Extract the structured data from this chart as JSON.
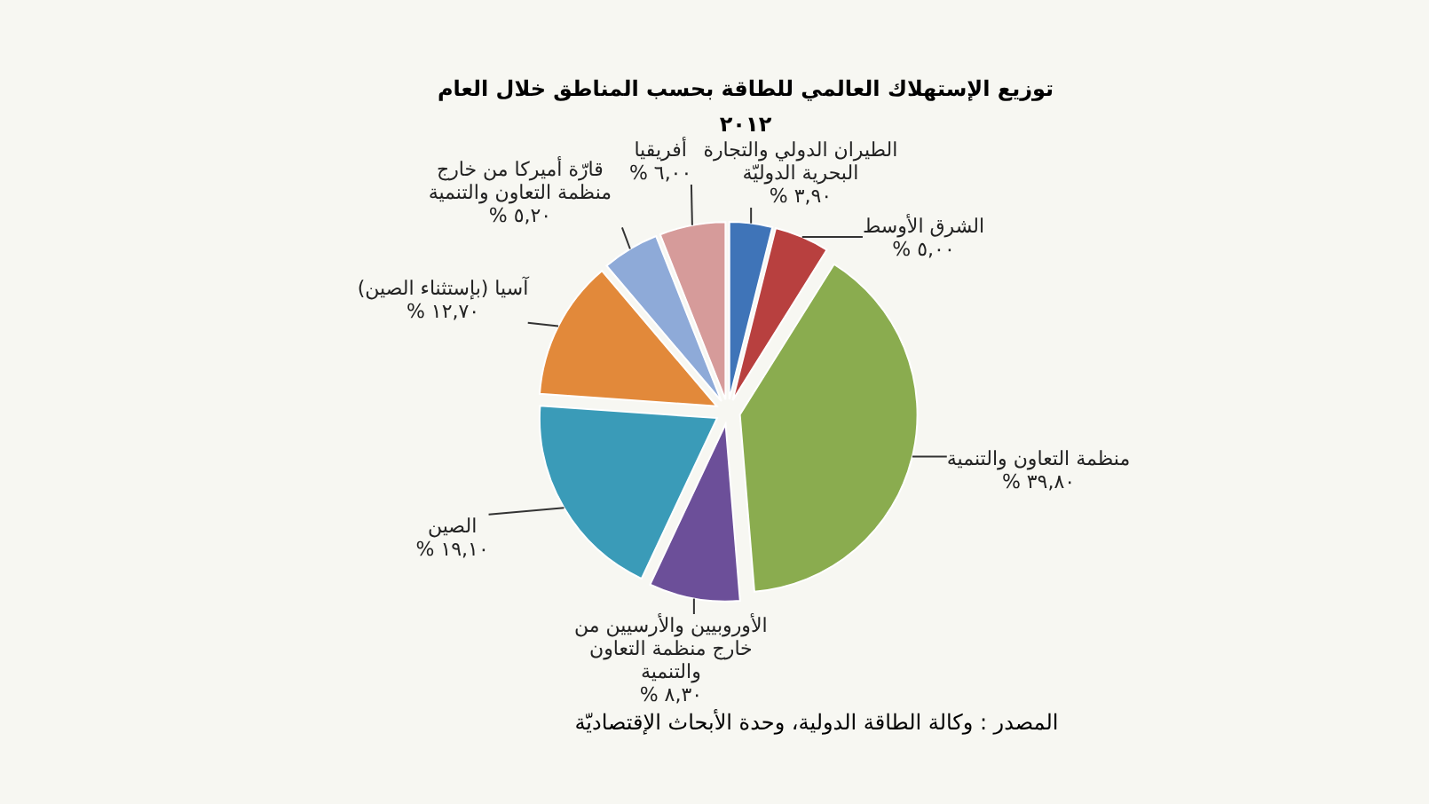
{
  "chart_data": {
    "type": "pie",
    "title": "توزيع الإستهلاك العالمي للطاقة بحسب المناطق خلال العام ٢٠١٢",
    "categories": [
      "الطيران الدولي والتجارة البحرية الدوليّة",
      "الشرق الأوسط",
      "منظمة التعاون والتنمية",
      "الأوروبيين والأرسيين من خارج منظمة التعاون والتنمية",
      "الصين",
      "آسيا (بإستثناء الصين)",
      "قارّة أميركا من خارج منظمة التعاون والتنمية",
      "أفريقيا"
    ],
    "values": [
      3.9,
      5.0,
      39.8,
      8.3,
      19.1,
      12.7,
      5.2,
      6.0
    ],
    "value_labels": [
      "٣,٩٠ %",
      "٥,٠٠ %",
      "٣٩,٨٠ %",
      "٨,٣٠ %",
      "١٩,١٠ %",
      "١٢,٧٠ %",
      "٥,٢٠ %",
      "٦,٠٠ %"
    ],
    "colors": [
      "#3f74b8",
      "#b8403f",
      "#8aac4f",
      "#6c4f99",
      "#3a9bb8",
      "#e2893a",
      "#8eaad8",
      "#d69b9a"
    ],
    "annotations": [
      "المصدر : وكالة الطاقة الدولية، وحدة الأبحاث الإقتصاديّة"
    ]
  }
}
